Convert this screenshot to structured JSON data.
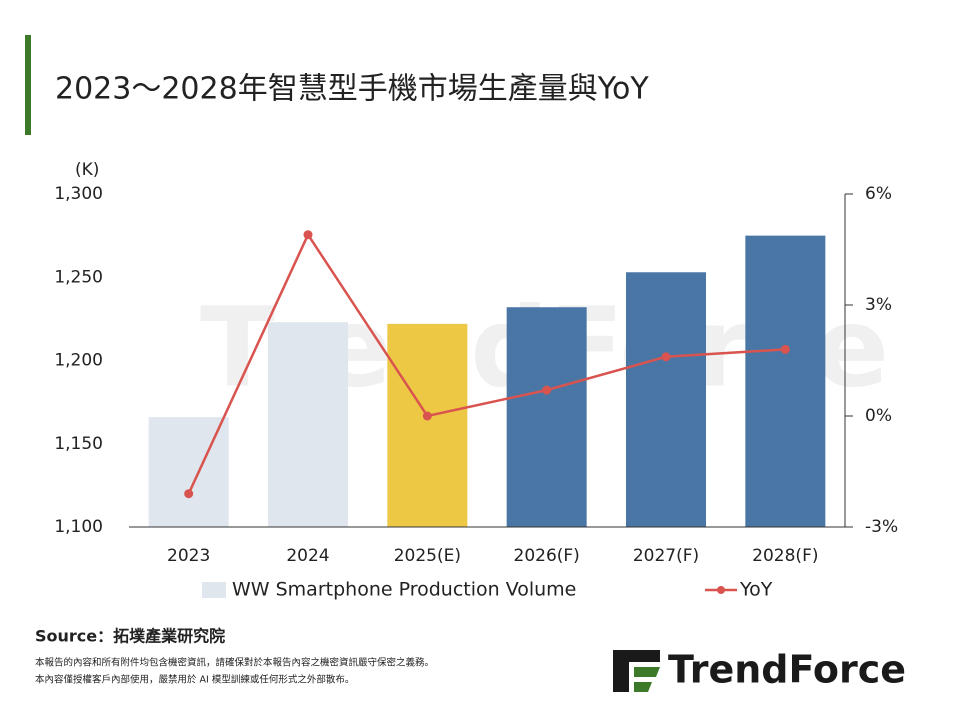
{
  "chart_data": {
    "type": "bar-line",
    "title": "2023～2028年智慧型手機市場生產量與YoY",
    "y_axis_label": "(K)",
    "categories": [
      "2023",
      "2024",
      "2025(E)",
      "2026(F)",
      "2027(F)",
      "2028(F)"
    ],
    "series": [
      {
        "name": "WW Smartphone Production Volume",
        "type": "bar",
        "color": "#dfe6ee",
        "colors": [
          "#dfe6ee",
          "#dfe6ee",
          "#ecc844",
          "#4a76a6",
          "#4a76a6",
          "#4a76a6"
        ],
        "values": [
          1166,
          1223,
          1222,
          1232,
          1253,
          1275
        ]
      },
      {
        "name": "YoY",
        "type": "line",
        "axis": "y2",
        "color": "#d9534f",
        "values": [
          -2.1,
          4.9,
          0.0,
          0.7,
          1.6,
          1.8
        ]
      }
    ],
    "ylim": [
      1100,
      1300
    ],
    "yticks": [
      {
        "value": 1100,
        "label": "1,100"
      },
      {
        "value": 1150,
        "label": "1,150"
      },
      {
        "value": 1200,
        "label": "1,200"
      },
      {
        "value": 1250,
        "label": "1,250"
      },
      {
        "value": 1300,
        "label": "1,300"
      }
    ],
    "y2lim": [
      -3,
      6
    ],
    "y2ticks": [
      {
        "value": -3,
        "label": "-3%"
      },
      {
        "value": 0,
        "label": "0%"
      },
      {
        "value": 3,
        "label": "3%"
      },
      {
        "value": 6,
        "label": "6%"
      }
    ],
    "grid": false
  },
  "watermark": "TrendForce",
  "source": "Source：拓墣產業研究院",
  "disclaimer": [
    "本報告的內容和所有附件均包含機密資訊，請確保對於本報告內容之機密資訊嚴守保密之義務。",
    "本內容僅授權客戶內部使用，嚴禁用於 AI 模型訓練或任何形式之外部散布。"
  ],
  "logo": "TrendForce"
}
